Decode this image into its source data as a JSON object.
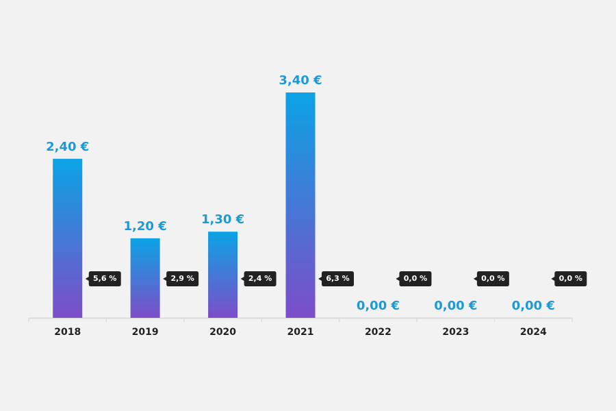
{
  "chart_data": {
    "type": "bar",
    "categories": [
      "2018",
      "2019",
      "2020",
      "2021",
      "2022",
      "2023",
      "2024"
    ],
    "values": [
      2.4,
      1.2,
      1.3,
      3.4,
      0,
      0,
      0
    ],
    "value_labels": [
      "2,40 €",
      "1,20 €",
      "1,30 €",
      "3,40 €",
      "0,00 €",
      "0,00 €",
      "0,00 €"
    ],
    "gradient": [
      "#0ba3e5",
      "#7d4dc8"
    ],
    "yields": {
      "values": [
        5.6,
        2.9,
        2.4,
        6.3,
        0,
        0,
        0
      ],
      "value_labels": [
        "5,6 %",
        "2,9 %",
        "2,4 %",
        "6,3 %",
        "0,0 %",
        "0,0 %",
        "0,0 %"
      ]
    }
  }
}
